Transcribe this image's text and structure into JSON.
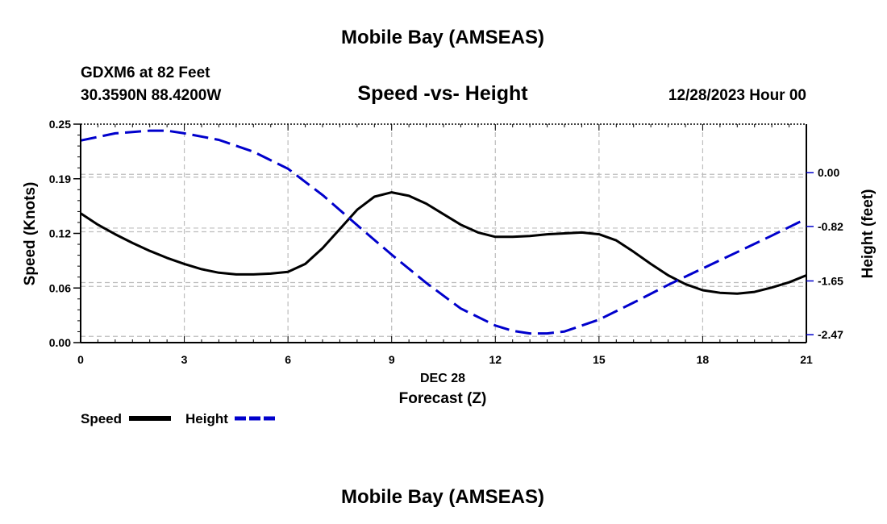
{
  "header": {
    "title": "Mobile Bay (AMSEAS)",
    "station": "GDXM6 at 82 Feet",
    "coords": "30.3590N  88.4200W",
    "date": "12/28/2023 Hour 00"
  },
  "footer": {
    "title": "Mobile Bay (AMSEAS)"
  },
  "colors": {
    "speed": "#000000",
    "height": "#0000cc",
    "grid": "#bdbdbd"
  },
  "chart_data": {
    "type": "line",
    "title": "Speed -vs- Height",
    "xlabel": "Forecast (Z)",
    "xlabel_date": "DEC 28",
    "ylabel": "Speed (Knots)",
    "y2label": "Height (feet)",
    "xlim": [
      0,
      21
    ],
    "ylim": [
      0,
      0.25
    ],
    "y2lim": [
      -2.59,
      0.74
    ],
    "x_ticks": [
      0,
      3,
      6,
      9,
      12,
      15,
      18,
      21
    ],
    "x_tick_labels": [
      "0",
      "3",
      "6",
      "9",
      "12",
      "15",
      "18",
      "21"
    ],
    "y_ticks": [
      0,
      0.0625,
      0.125,
      0.1875,
      0.25
    ],
    "y_tick_labels": [
      "0.00",
      "0.06",
      "0.12",
      "0.19",
      "0.25"
    ],
    "y2_ticks": [
      0,
      -0.82,
      -1.65,
      -2.47
    ],
    "y2_tick_labels": [
      "0.00",
      "-0.82",
      "-1.65",
      "-2.47"
    ],
    "grid": true,
    "legend_position": "bottom-left",
    "series": [
      {
        "name": "Speed",
        "axis": "left",
        "style": "solid",
        "x": [
          0,
          0.5,
          1,
          1.5,
          2,
          2.5,
          3,
          3.5,
          4,
          4.5,
          5,
          5.5,
          6,
          6.5,
          7,
          7.5,
          8,
          8.5,
          9,
          9.5,
          10,
          10.5,
          11,
          11.5,
          12,
          12.5,
          13,
          13.5,
          14,
          14.5,
          15,
          15.5,
          16,
          16.5,
          17,
          17.5,
          18,
          18.5,
          19,
          19.5,
          20,
          20.5,
          21
        ],
        "values": [
          0.148,
          0.135,
          0.124,
          0.114,
          0.105,
          0.097,
          0.09,
          0.084,
          0.08,
          0.078,
          0.078,
          0.079,
          0.081,
          0.09,
          0.108,
          0.13,
          0.152,
          0.167,
          0.172,
          0.168,
          0.159,
          0.147,
          0.135,
          0.126,
          0.121,
          0.121,
          0.122,
          0.124,
          0.125,
          0.126,
          0.124,
          0.117,
          0.104,
          0.09,
          0.077,
          0.067,
          0.06,
          0.057,
          0.056,
          0.058,
          0.063,
          0.069,
          0.077
        ]
      },
      {
        "name": "Height",
        "axis": "right",
        "style": "dashed",
        "x": [
          0,
          1,
          2,
          2.5,
          3,
          4,
          5,
          6,
          7,
          8,
          9,
          10,
          11,
          12,
          12.5,
          13,
          13.5,
          14,
          15,
          16,
          17,
          18,
          19,
          20,
          21
        ],
        "values": [
          0.49,
          0.6,
          0.64,
          0.64,
          0.6,
          0.5,
          0.32,
          0.06,
          -0.34,
          -0.8,
          -1.25,
          -1.68,
          -2.07,
          -2.33,
          -2.41,
          -2.45,
          -2.45,
          -2.42,
          -2.24,
          -1.98,
          -1.71,
          -1.46,
          -1.21,
          -0.96,
          -0.7
        ]
      }
    ]
  },
  "legend": {
    "items": [
      {
        "label": "Speed"
      },
      {
        "label": "Height"
      }
    ]
  }
}
